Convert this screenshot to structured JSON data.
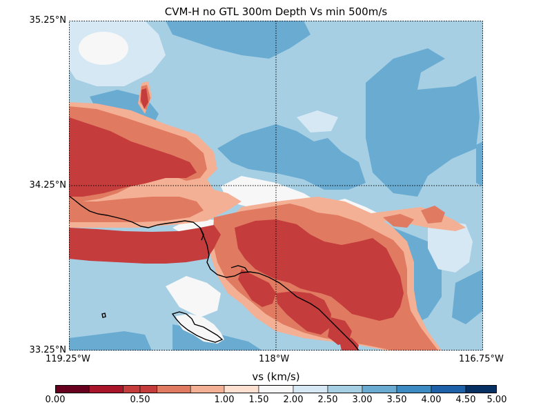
{
  "title": "CVM-H no GTL 300m Depth Vs min 500m/s",
  "axes": {
    "lat_labels": [
      "35.25°N",
      "34.25°N",
      "33.25°N"
    ],
    "lon_labels": [
      "119.25°W",
      "118°W",
      "116.75°W"
    ]
  },
  "colorbar": {
    "label": "vs (km/s)",
    "tick_labels": [
      "0.00",
      "0.50",
      "1.00",
      "1.50",
      "2.00",
      "2.50",
      "3.00",
      "3.50",
      "4.00",
      "4.50",
      "5.00"
    ],
    "bins": [
      {
        "from": 0.0,
        "to": 0.2,
        "color": "#67001f"
      },
      {
        "from": 0.2,
        "to": 0.4,
        "color": "#a81529"
      },
      {
        "from": 0.4,
        "to": 0.5,
        "color": "#c43c3c"
      },
      {
        "from": 0.5,
        "to": 0.6,
        "color": "#c43c3c"
      },
      {
        "from": 0.6,
        "to": 0.8,
        "color": "#e07b62"
      },
      {
        "from": 0.8,
        "to": 1.0,
        "color": "#f4b094"
      },
      {
        "from": 1.0,
        "to": 1.5,
        "color": "#fde0d0"
      },
      {
        "from": 1.5,
        "to": 2.0,
        "color": "#f7f7f7"
      },
      {
        "from": 2.0,
        "to": 2.5,
        "color": "#d6e8f3"
      },
      {
        "from": 2.5,
        "to": 3.0,
        "color": "#a6cfe4"
      },
      {
        "from": 3.0,
        "to": 3.5,
        "color": "#6aabd2"
      },
      {
        "from": 3.5,
        "to": 4.0,
        "color": "#3c8cc3"
      },
      {
        "from": 4.0,
        "to": 4.5,
        "color": "#1d62a8"
      },
      {
        "from": 4.5,
        "to": 5.0,
        "color": "#063062"
      }
    ]
  }
}
